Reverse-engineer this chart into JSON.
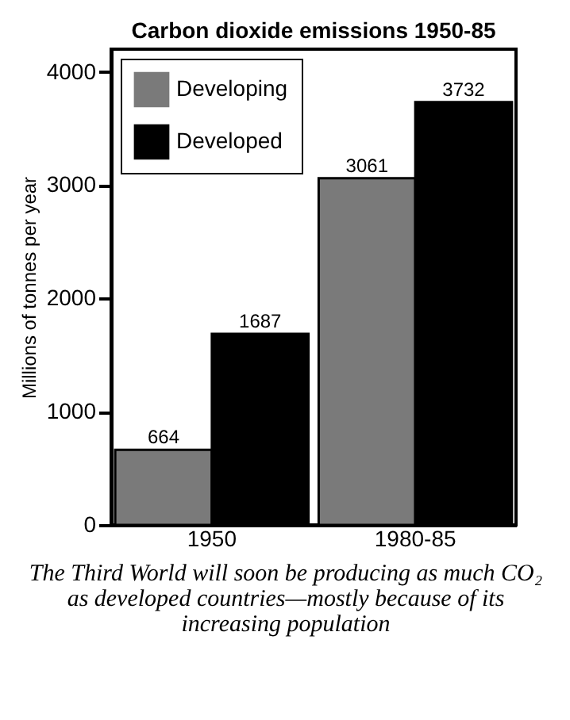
{
  "chart_data": {
    "type": "bar",
    "title": "Carbon dioxide emissions 1950-85",
    "ylabel": "Millions of tonnes per year",
    "categories": [
      "1950",
      "1980-85"
    ],
    "series": [
      {
        "name": "Developing",
        "color": "#7a7a7a",
        "values": [
          664,
          3061
        ]
      },
      {
        "name": "Developed",
        "color": "#000000",
        "values": [
          1687,
          3732
        ]
      }
    ],
    "ylim": [
      0,
      4200
    ],
    "yticks": [
      0,
      1000,
      2000,
      3000,
      4000
    ],
    "grid": false,
    "legend": "top left",
    "data_labels": true,
    "annotations": [
      "The Third World will soon be producing as much CO₂ as developed countries—mostly because of its increasing population"
    ]
  }
}
